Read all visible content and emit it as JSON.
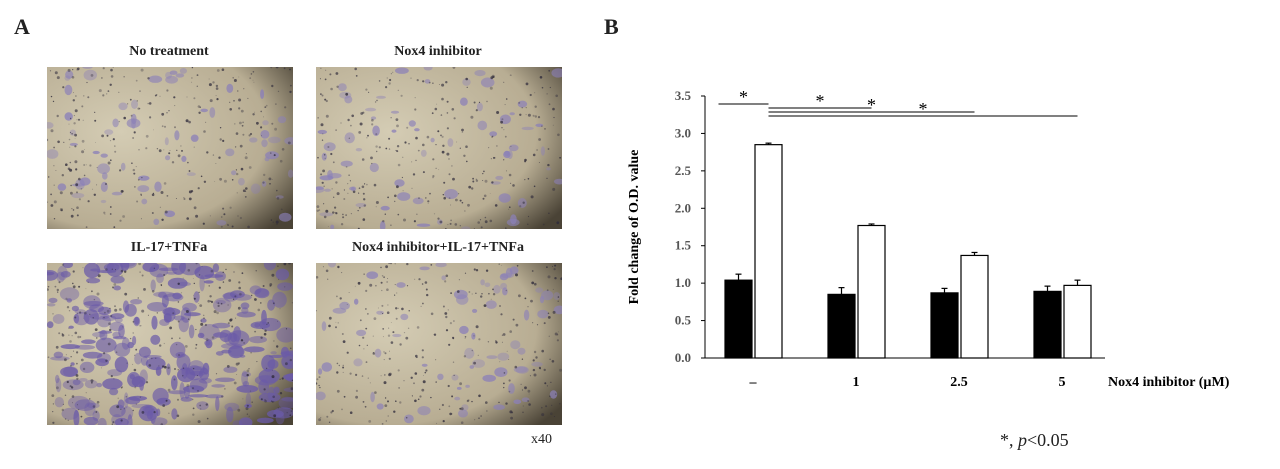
{
  "panels": {
    "a": "A",
    "b": "B"
  },
  "micrographs": [
    {
      "title": "No treatment",
      "stain": "light"
    },
    {
      "title": "Nox4 inhibitor",
      "stain": "light"
    },
    {
      "title": "IL-17+TNFa",
      "stain": "heavy"
    },
    {
      "title": "Nox4 inhibitor+IL-17+TNFa",
      "stain": "light"
    }
  ],
  "magnification": "x40",
  "significance_note": {
    "prefix": "*, ",
    "p": "p",
    "suffix": "<0.05"
  },
  "chart_data": {
    "type": "bar",
    "ylabel": "Fold change of O.D.  value",
    "xlabel": "Nox4 inhibitor (µM)",
    "categories": [
      "–",
      "1",
      "2.5",
      "5"
    ],
    "ylim": [
      0.0,
      3.5
    ],
    "yticks": [
      "0.0",
      "0.5",
      "1.0",
      "1.5",
      "2.0",
      "2.5",
      "3.0",
      "3.5"
    ],
    "series": [
      {
        "values": [
          1.04,
          0.85,
          0.87,
          0.89
        ],
        "errors": [
          0.08,
          0.09,
          0.06,
          0.07
        ],
        "color": "#000000"
      },
      {
        "values": [
          2.85,
          1.77,
          1.37,
          0.97
        ],
        "errors": [
          0.02,
          0.02,
          0.04,
          0.07
        ],
        "color": "#ffffff"
      }
    ],
    "significance": [
      {
        "from": 0,
        "to": 1,
        "label": "*"
      },
      {
        "from": 1,
        "to": 3,
        "label": "*"
      },
      {
        "from": 1,
        "to": 5,
        "label": "*"
      },
      {
        "from": 1,
        "to": 7,
        "label": "*"
      }
    ]
  }
}
